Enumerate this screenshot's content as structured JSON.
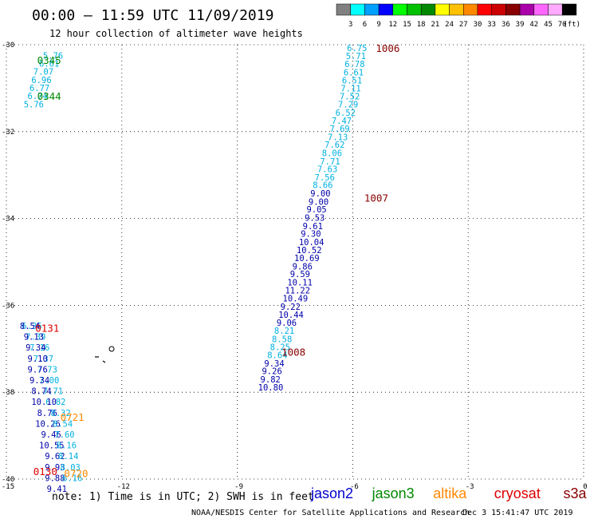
{
  "header": {
    "title": "00:00 — 11:59 UTC 11/09/2019",
    "subtitle": "12 hour collection of altimeter wave heights"
  },
  "colorbar": {
    "labels": [
      "3",
      "6",
      "9",
      "12",
      "15",
      "18",
      "21",
      "24",
      "27",
      "30",
      "33",
      "36",
      "39",
      "42",
      "45",
      "70"
    ],
    "unit": "(ft)",
    "colors": [
      "#808080",
      "#00ffff",
      "#00a0ff",
      "#0000ff",
      "#00ff00",
      "#00c000",
      "#008800",
      "#ffff00",
      "#ffc000",
      "#ff8800",
      "#ff0000",
      "#cc0000",
      "#880000",
      "#aa00aa",
      "#ff66ff",
      "#ffaaff",
      "#000000"
    ]
  },
  "footer": {
    "note": "note:  1) Time is in UTC; 2) SWH is in feet",
    "credit": "NOAA/NESDIS Center for Satellite Applications and Research",
    "timestamp": "Dec  3 15:41:47 UTC 2019"
  },
  "legend": [
    {
      "name": "jason2",
      "color": "#0000cc"
    },
    {
      "name": "jason3",
      "color": "#008800"
    },
    {
      "name": "altika",
      "color": "#ff8800"
    },
    {
      "name": "cryosat",
      "color": "#dd0000"
    },
    {
      "name": "s3a",
      "color": "#880000"
    }
  ],
  "chart_data": {
    "type": "scatter",
    "title": "12 hour collection of altimeter wave heights",
    "xlim": [
      -15,
      0
    ],
    "ylim": [
      -40,
      -30
    ],
    "x_ticks": [
      "-15",
      "-12",
      "-9",
      "-6",
      "-3",
      "0"
    ],
    "y_ticks": [
      "-30",
      "-32",
      "-34",
      "-36",
      "-38",
      "-40"
    ],
    "grid": true,
    "time_labels": [
      {
        "text": "1006",
        "x": -5.4,
        "y": -30.07,
        "color": "#880000"
      },
      {
        "text": "0345",
        "x": -14.2,
        "y": -30.35,
        "color": "#008800"
      },
      {
        "text": "0344",
        "x": -14.2,
        "y": -31.18,
        "color": "#008800"
      },
      {
        "text": "1007",
        "x": -5.7,
        "y": -33.52,
        "color": "#880000"
      },
      {
        "text": "0131",
        "x": -14.25,
        "y": -36.52,
        "color": "#dd0000"
      },
      {
        "text": "1008",
        "x": -7.85,
        "y": -37.07,
        "color": "#880000"
      },
      {
        "text": "0721",
        "x": -13.6,
        "y": -38.57,
        "color": "#ff8800"
      },
      {
        "text": "0130",
        "x": -14.3,
        "y": -39.82,
        "color": "#dd0000"
      },
      {
        "text": "0720",
        "x": -13.5,
        "y": -39.86,
        "color": "#ff8800"
      }
    ],
    "series": [
      {
        "name": "s3a",
        "color": "#00b0e0",
        "points": [
          {
            "x": -6.15,
            "y": -30.07,
            "v": "6.75"
          },
          {
            "x": -6.18,
            "y": -30.26,
            "v": "5.71"
          },
          {
            "x": -6.21,
            "y": -30.44,
            "v": "6.78"
          },
          {
            "x": -6.24,
            "y": -30.63,
            "v": "6.61"
          },
          {
            "x": -6.28,
            "y": -30.82,
            "v": "6.51"
          },
          {
            "x": -6.31,
            "y": -31.0,
            "v": "7.11"
          },
          {
            "x": -6.34,
            "y": -31.19,
            "v": "7.52"
          },
          {
            "x": -6.38,
            "y": -31.37,
            "v": "7.29"
          },
          {
            "x": -6.45,
            "y": -31.56,
            "v": "6.52"
          },
          {
            "x": -6.55,
            "y": -31.75,
            "v": "7.47"
          },
          {
            "x": -6.6,
            "y": -31.93,
            "v": "7.69"
          },
          {
            "x": -6.65,
            "y": -32.12,
            "v": "7.13"
          },
          {
            "x": -6.73,
            "y": -32.3,
            "v": "7.62"
          },
          {
            "x": -6.8,
            "y": -32.49,
            "v": "8.06"
          },
          {
            "x": -6.85,
            "y": -32.68,
            "v": "7.71"
          },
          {
            "x": -6.92,
            "y": -32.86,
            "v": "7.63"
          },
          {
            "x": -6.99,
            "y": -33.05,
            "v": "7.56"
          },
          {
            "x": -7.04,
            "y": -33.23,
            "v": "8.66"
          }
        ]
      },
      {
        "name": "s3a",
        "color": "#0000aa",
        "points": [
          {
            "x": -7.1,
            "y": -33.42,
            "v": "9.00"
          },
          {
            "x": -7.15,
            "y": -33.61,
            "v": "9.00"
          },
          {
            "x": -7.2,
            "y": -33.79,
            "v": "9.05"
          },
          {
            "x": -7.25,
            "y": -33.98,
            "v": "9.53"
          },
          {
            "x": -7.3,
            "y": -34.17,
            "v": "9.61"
          },
          {
            "x": -7.35,
            "y": -34.35,
            "v": "9.30"
          },
          {
            "x": -7.4,
            "y": -34.54,
            "v": "10.04"
          },
          {
            "x": -7.46,
            "y": -34.72,
            "v": "10.52"
          },
          {
            "x": -7.52,
            "y": -34.91,
            "v": "10.69"
          },
          {
            "x": -7.57,
            "y": -35.1,
            "v": "9.86"
          },
          {
            "x": -7.63,
            "y": -35.28,
            "v": "9.59"
          },
          {
            "x": -7.7,
            "y": -35.47,
            "v": "10.11"
          },
          {
            "x": -7.76,
            "y": -35.65,
            "v": "11.22"
          },
          {
            "x": -7.82,
            "y": -35.84,
            "v": "10.49"
          },
          {
            "x": -7.88,
            "y": -36.03,
            "v": "9.22"
          },
          {
            "x": -7.93,
            "y": -36.21,
            "v": "10.44"
          },
          {
            "x": -7.98,
            "y": -36.4,
            "v": "9.06"
          }
        ]
      },
      {
        "name": "s3a",
        "color": "#00b0e0",
        "points": [
          {
            "x": -8.04,
            "y": -36.58,
            "v": "8.21"
          },
          {
            "x": -8.1,
            "y": -36.77,
            "v": "8.58"
          },
          {
            "x": -8.15,
            "y": -36.96,
            "v": "8.25"
          },
          {
            "x": -8.22,
            "y": -37.14,
            "v": "8.64"
          }
        ]
      },
      {
        "name": "s3a",
        "color": "#0000aa",
        "points": [
          {
            "x": -8.3,
            "y": -37.33,
            "v": "9.34"
          },
          {
            "x": -8.36,
            "y": -37.51,
            "v": "9.26"
          },
          {
            "x": -8.4,
            "y": -37.7,
            "v": "9.82"
          },
          {
            "x": -8.46,
            "y": -37.89,
            "v": "10.80"
          }
        ]
      },
      {
        "name": "jason3",
        "color": "#00b0e0",
        "points": [
          {
            "x": -14.05,
            "y": -30.25,
            "v": "5.76"
          },
          {
            "x": -14.15,
            "y": -30.43,
            "v": "6.61"
          },
          {
            "x": -14.3,
            "y": -30.62,
            "v": "7.07"
          },
          {
            "x": -14.35,
            "y": -30.81,
            "v": "6.96"
          },
          {
            "x": -14.4,
            "y": -30.99,
            "v": "6.77"
          },
          {
            "x": -14.45,
            "y": -31.18,
            "v": "6.74"
          },
          {
            "x": -14.55,
            "y": -31.37,
            "v": "5.76"
          }
        ]
      },
      {
        "name": "cryosat",
        "color": "#00b0e0",
        "points": [
          {
            "x": -14.6,
            "y": -36.47,
            "v": "6.36"
          },
          {
            "x": -14.5,
            "y": -36.72,
            "v": "7.39"
          },
          {
            "x": -14.4,
            "y": -36.97,
            "v": "7.16"
          },
          {
            "x": -14.3,
            "y": -37.22,
            "v": "7.37"
          },
          {
            "x": -14.2,
            "y": -37.47,
            "v": "7.73"
          },
          {
            "x": -14.15,
            "y": -37.72,
            "v": "7.00"
          },
          {
            "x": -14.05,
            "y": -37.97,
            "v": "7.71"
          },
          {
            "x": -13.98,
            "y": -38.22,
            "v": "6.82"
          }
        ]
      },
      {
        "name": "cryosat",
        "color": "#0000aa",
        "points": [
          {
            "x": -14.65,
            "y": -36.47,
            "v": "8.54"
          },
          {
            "x": -14.55,
            "y": -36.72,
            "v": "9.13"
          },
          {
            "x": -14.5,
            "y": -36.97,
            "v": "9.34"
          },
          {
            "x": -14.45,
            "y": -37.22,
            "v": "9.10"
          },
          {
            "x": -14.45,
            "y": -37.47,
            "v": "9.76"
          },
          {
            "x": -14.4,
            "y": -37.72,
            "v": "9.34"
          },
          {
            "x": -14.35,
            "y": -37.97,
            "v": "8.74"
          },
          {
            "x": -14.35,
            "y": -38.22,
            "v": "10.10"
          },
          {
            "x": -14.2,
            "y": -38.47,
            "v": "8.76"
          },
          {
            "x": -14.25,
            "y": -38.72,
            "v": "10.26"
          },
          {
            "x": -14.1,
            "y": -38.97,
            "v": "9.46"
          },
          {
            "x": -14.15,
            "y": -39.22,
            "v": "10.55"
          },
          {
            "x": -14.0,
            "y": -39.47,
            "v": "9.62"
          },
          {
            "x": -14.0,
            "y": -39.72,
            "v": "9.93"
          },
          {
            "x": -14.0,
            "y": -39.97,
            "v": "9.88"
          },
          {
            "x": -13.95,
            "y": -40.22,
            "v": "9.41"
          }
        ]
      },
      {
        "name": "altika",
        "color": "#00b0e0",
        "points": [
          {
            "x": -13.85,
            "y": -38.47,
            "v": "8.32"
          },
          {
            "x": -13.8,
            "y": -38.72,
            "v": "8.54"
          },
          {
            "x": -13.75,
            "y": -38.97,
            "v": "7.60"
          },
          {
            "x": -13.7,
            "y": -39.22,
            "v": "8.16"
          },
          {
            "x": -13.65,
            "y": -39.47,
            "v": "8.14"
          },
          {
            "x": -13.6,
            "y": -39.72,
            "v": "8.03"
          },
          {
            "x": -13.55,
            "y": -39.97,
            "v": "8.16"
          }
        ]
      }
    ]
  }
}
